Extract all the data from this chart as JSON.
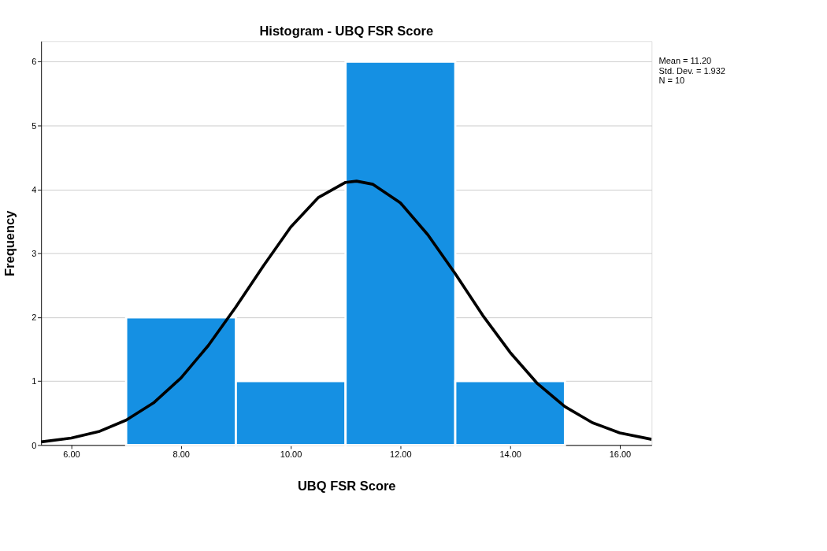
{
  "chart_data": {
    "type": "histogram",
    "title": "Histogram - UBQ FSR Score",
    "xlabel": "UBQ FSR Score",
    "ylabel": "Frequency",
    "bins": [
      7,
      9,
      11,
      13,
      15
    ],
    "values": [
      2,
      1,
      6,
      1
    ],
    "color": "#1590e3",
    "series": [
      {
        "type": "line",
        "color": "#000000",
        "x": [
          5.45,
          6,
          6.5,
          7,
          7.5,
          8,
          8.5,
          9,
          9.5,
          10,
          10.5,
          11,
          11.2,
          11.5,
          12,
          12.5,
          13,
          13.5,
          14,
          14.5,
          15,
          15.5,
          16,
          16.58
        ],
        "values": [
          0.05,
          0.11,
          0.21,
          0.39,
          0.66,
          1.05,
          1.56,
          2.16,
          2.8,
          3.41,
          3.87,
          4.11,
          4.13,
          4.08,
          3.79,
          3.29,
          2.68,
          2.03,
          1.45,
          0.96,
          0.6,
          0.35,
          0.19,
          0.09
        ]
      }
    ],
    "xlim": [
      5.45,
      16.58
    ],
    "xticks": [
      {
        "value": 6,
        "label": "6.00"
      },
      {
        "value": 8,
        "label": "8.00"
      },
      {
        "value": 10,
        "label": "10.00"
      },
      {
        "value": 12,
        "label": "12.00"
      },
      {
        "value": 14,
        "label": "14.00"
      },
      {
        "value": 16,
        "label": "16.00"
      }
    ],
    "ylim": [
      0,
      6.32
    ],
    "yticks": [
      0,
      1,
      2,
      3,
      4,
      5,
      6
    ],
    "grid": "y",
    "annotations": [
      "Mean = 11.20",
      "Std. Dev. = 1.932",
      "N = 10"
    ]
  }
}
